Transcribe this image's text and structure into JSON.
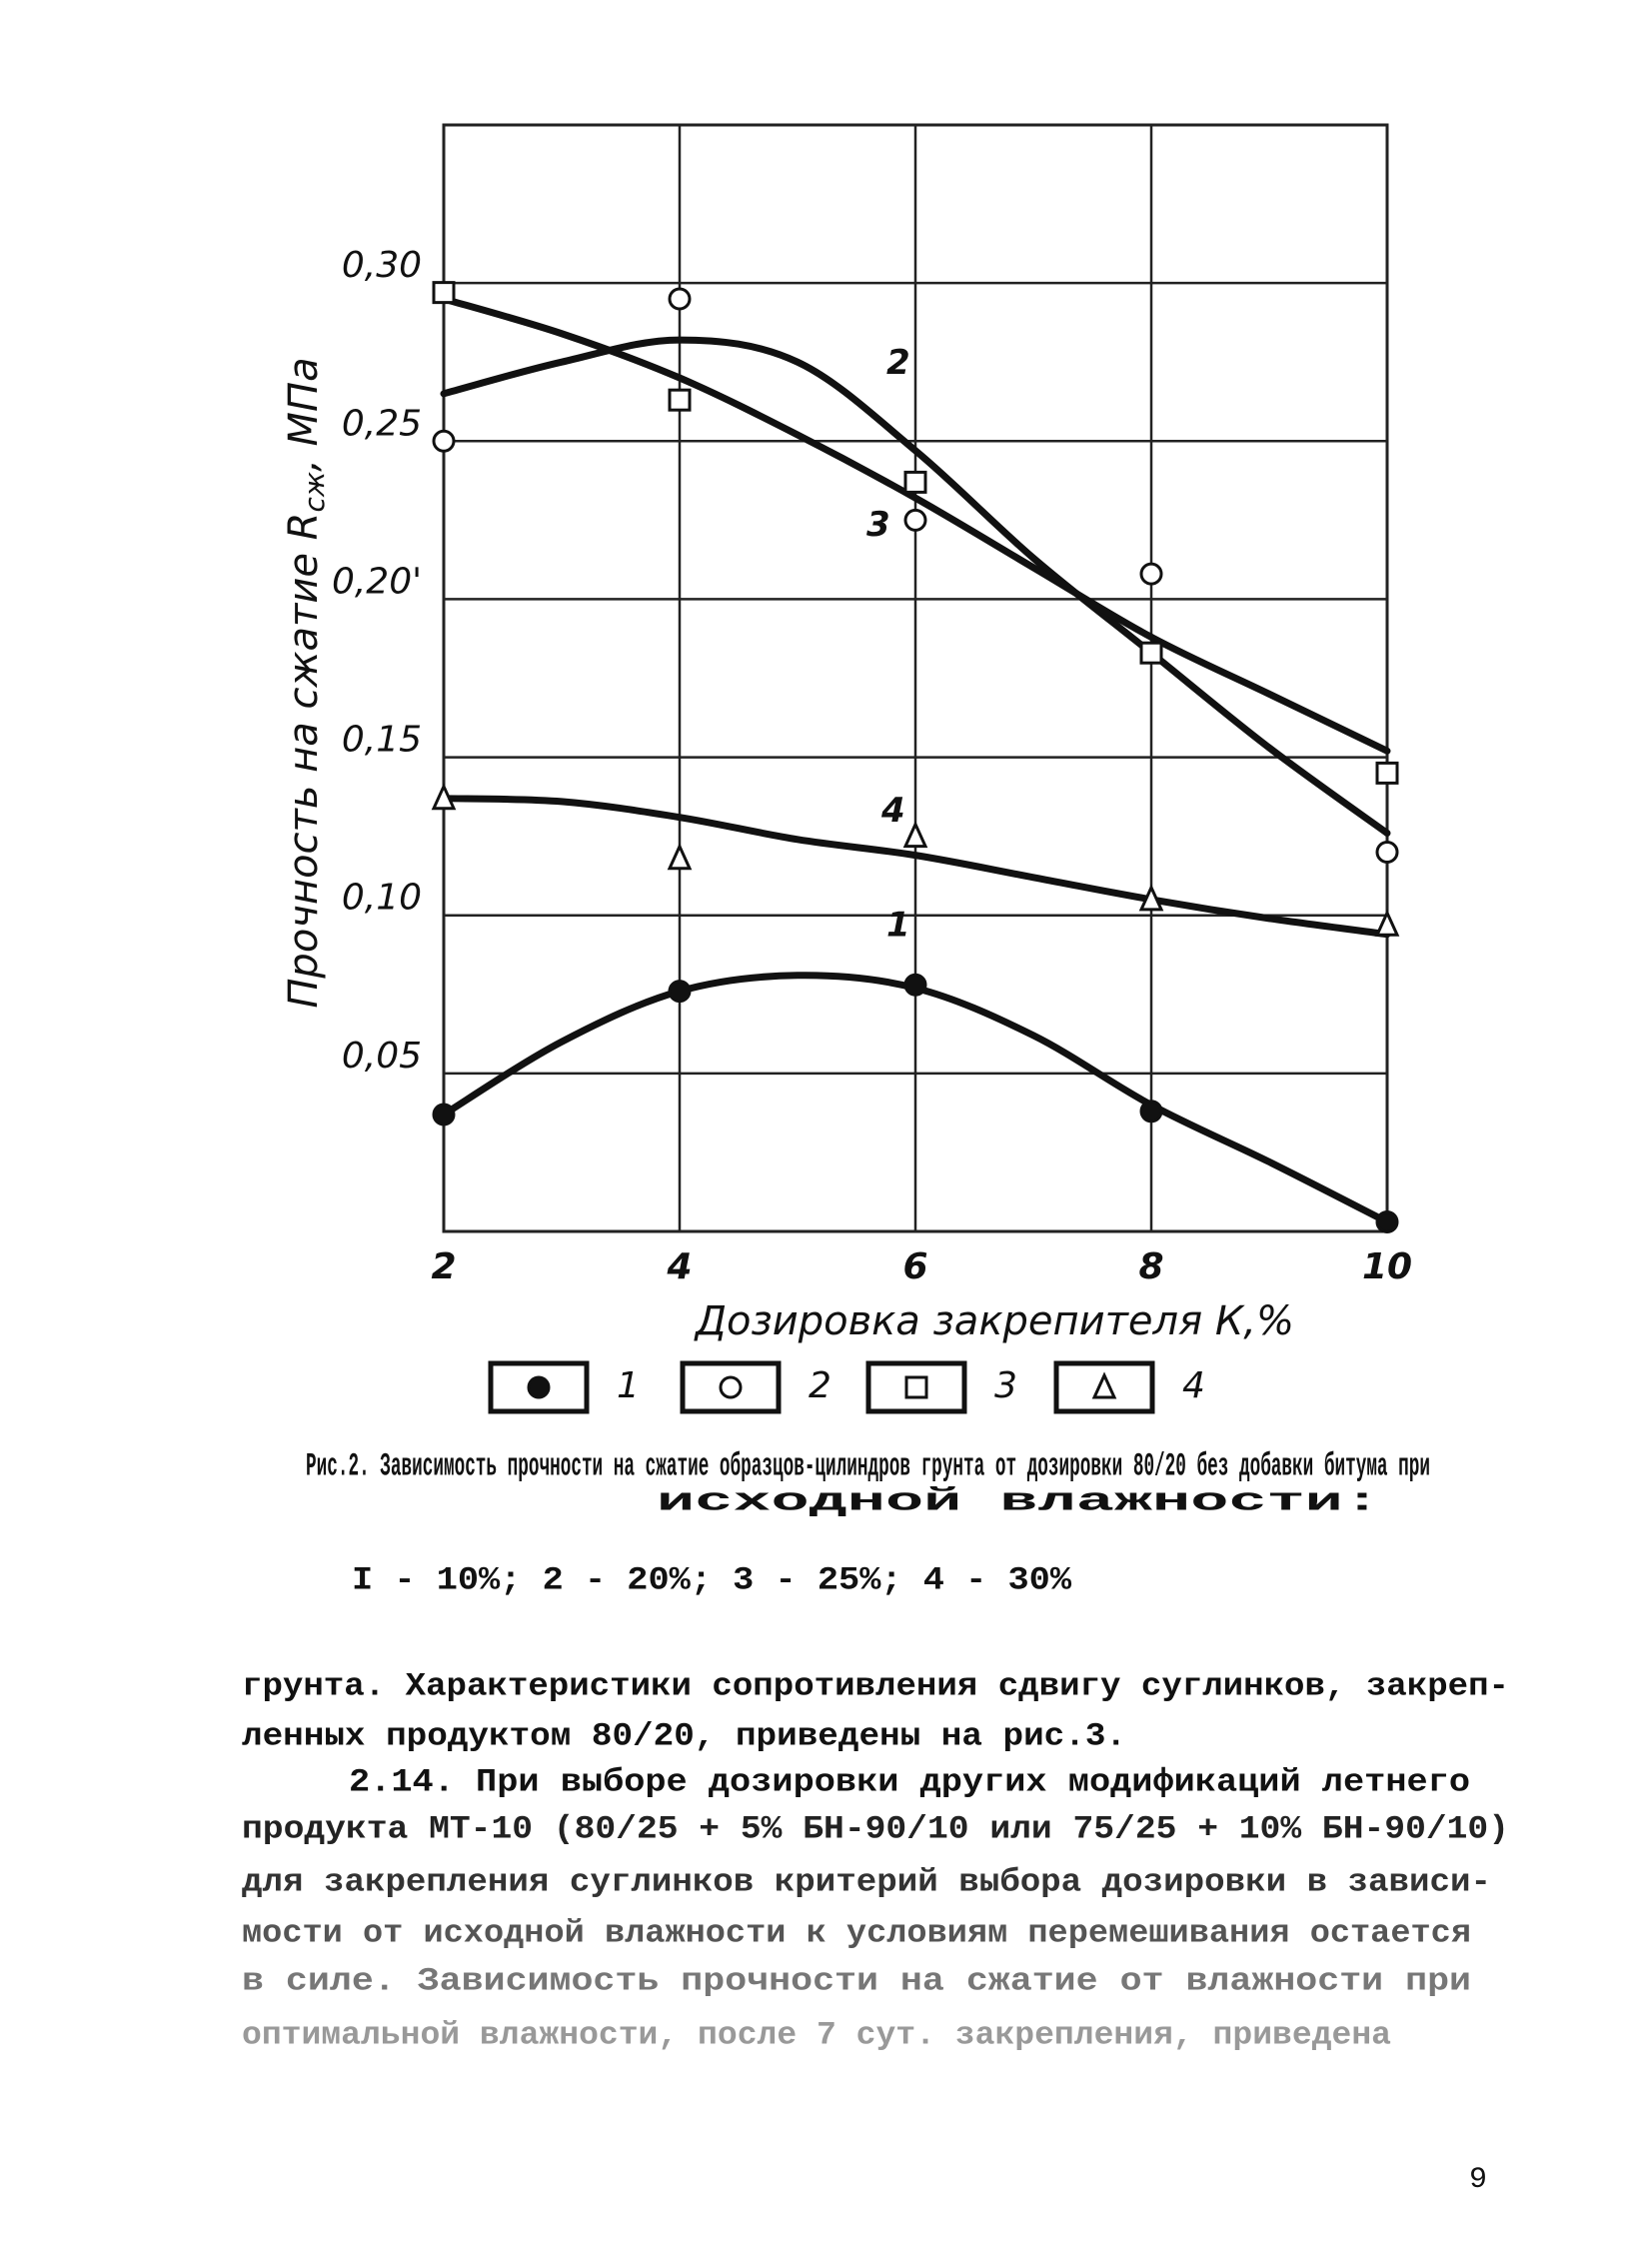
{
  "chart_data": {
    "type": "line",
    "y_label": "Прочность на сжатие R",
    "y_label_sub": "сж",
    "y_label_unit": ", МПа",
    "x_label": "Дозировка закрепителя К,%",
    "x": [
      2,
      4,
      6,
      8,
      10
    ],
    "curve_x": [
      2,
      3,
      4,
      5,
      6,
      7,
      8,
      9,
      10
    ],
    "xlim": [
      2,
      10
    ],
    "xticks": [
      2,
      4,
      6,
      8,
      10
    ],
    "ylim": [
      0,
      0.35
    ],
    "yticks": [
      {
        "value": 0.05,
        "label": "0,05"
      },
      {
        "value": 0.1,
        "label": "0,10"
      },
      {
        "value": 0.15,
        "label": "0,15"
      },
      {
        "value": 0.2,
        "label": "0,20'"
      },
      {
        "value": 0.25,
        "label": "0,25"
      },
      {
        "value": 0.3,
        "label": "0,30"
      }
    ],
    "grid": true,
    "series": [
      {
        "name": "1",
        "marker": "filled-circle",
        "color": "#111111",
        "values": [
          0.037,
          0.076,
          0.078,
          0.038,
          0.003
        ],
        "curve": [
          0.037,
          0.06,
          0.076,
          0.081,
          0.077,
          0.062,
          0.04,
          0.022,
          0.003
        ]
      },
      {
        "name": "2",
        "marker": "circle",
        "color": "#111111",
        "values": [
          0.25,
          0.295,
          0.225,
          0.208,
          0.12
        ],
        "curve": [
          0.265,
          0.275,
          0.282,
          0.275,
          0.247,
          0.213,
          0.183,
          0.153,
          0.126
        ]
      },
      {
        "name": "3",
        "marker": "square",
        "color": "#111111",
        "values": [
          0.297,
          0.263,
          0.237,
          0.183,
          0.145
        ],
        "curve": [
          0.295,
          0.284,
          0.27,
          0.252,
          0.232,
          0.21,
          0.188,
          0.17,
          0.152
        ]
      },
      {
        "name": "4",
        "marker": "triangle",
        "color": "#111111",
        "values": [
          0.137,
          0.118,
          0.125,
          0.105,
          0.097
        ],
        "curve": [
          0.137,
          0.136,
          0.131,
          0.124,
          0.119,
          0.112,
          0.105,
          0.099,
          0.094
        ]
      }
    ]
  },
  "caption": {
    "lines": [
      "Рис.2. Зависимость прочности на сжатие образцов-цилиндров грунта от дозировки 80/20 без добавки битума при",
      "исходной влажности:",
      "I - 10%; 2 - 20%; 3 - 25%; 4 - 30%"
    ]
  },
  "body": {
    "lines": [
      "грунта. Характеристики сопротивления сдвигу суглинков, закреп-",
      "ленных продуктом 80/20, приведены на рис.3.",
      "2.14. При выборе дозировки других модификаций летнего",
      "продукта МТ-10 (80/25 + 5% БН-90/10 или 75/25 + 10% БН-90/10)",
      "для закрепления суглинков критерий выбора дозировки в зависи-",
      "мости от исходной влажности к условиям перемешивания остается",
      "в силе. Зависимость прочности на сжатие от влажности при",
      "оптимальной влажности, после 7 сут. закрепления, приведена"
    ]
  },
  "page_number": "9"
}
